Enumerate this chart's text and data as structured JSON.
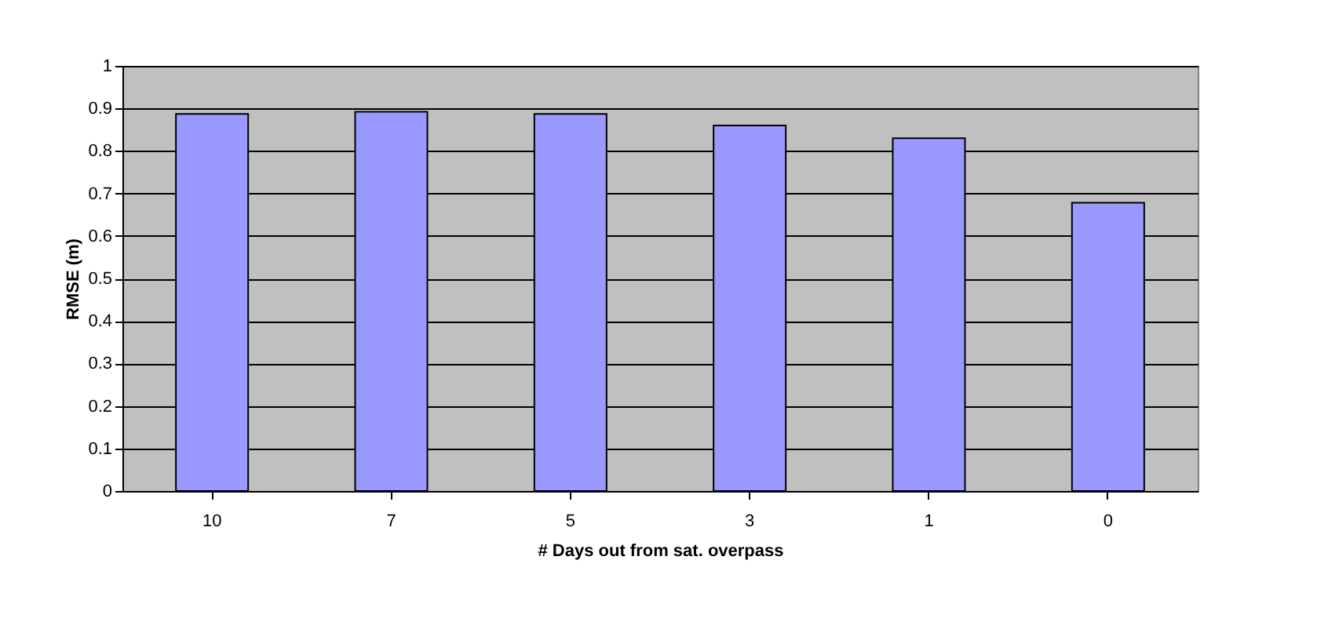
{
  "chart_data": {
    "type": "bar",
    "xlabel": "# Days out from sat. overpass",
    "ylabel": "RMSE (m)",
    "categories": [
      "10",
      "7",
      "5",
      "3",
      "1",
      "0"
    ],
    "values": [
      0.887,
      0.892,
      0.887,
      0.86,
      0.83,
      0.678
    ],
    "color": "#9999ff",
    "ylim": [
      0,
      1
    ],
    "yticks": [
      0,
      0.1,
      0.2,
      0.3,
      0.4,
      0.5,
      0.6,
      0.7,
      0.8,
      0.9,
      1
    ],
    "grid": "y"
  }
}
